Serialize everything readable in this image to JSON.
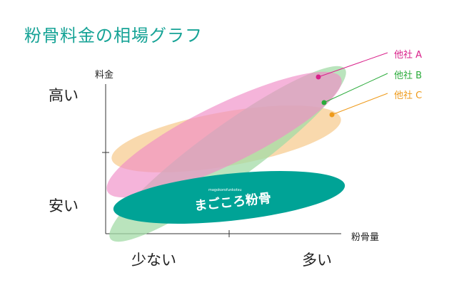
{
  "title": "粉骨料金の相場グラフ",
  "axis": {
    "y_title": "料金",
    "x_title": "粉骨量",
    "y_high": "高い",
    "y_low": "安い",
    "x_low": "少ない",
    "x_high": "多い"
  },
  "competitors": [
    {
      "label": "他社 A",
      "color": "#d9218a"
    },
    {
      "label": "他社 B",
      "color": "#2bab3b"
    },
    {
      "label": "他社 C",
      "color": "#ee9a1a"
    }
  ],
  "brand": {
    "name": "まごころ粉骨",
    "romaji": "magokorofunkotsu",
    "color": "#00a396"
  },
  "colors": {
    "pink": "#f08cc6",
    "orange": "#f7c98a",
    "green": "#a3dba7"
  }
}
